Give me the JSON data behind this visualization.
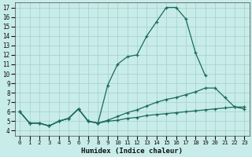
{
  "xlabel": "Humidex (Indice chaleur)",
  "bg_color": "#c8ecea",
  "grid_color": "#aad4d0",
  "line_color": "#1a6b5a",
  "xlim": [
    -0.5,
    23.5
  ],
  "ylim": [
    3.5,
    17.5
  ],
  "xticks": [
    0,
    1,
    2,
    3,
    4,
    5,
    6,
    7,
    8,
    9,
    10,
    11,
    12,
    13,
    14,
    15,
    16,
    17,
    18,
    19,
    20,
    21,
    22,
    23
  ],
  "yticks": [
    4,
    5,
    6,
    7,
    8,
    9,
    10,
    11,
    12,
    13,
    14,
    15,
    16,
    17
  ],
  "line1_x": [
    0,
    1,
    2,
    3,
    4,
    5,
    6,
    7,
    8,
    9,
    10,
    11,
    12,
    13,
    14,
    15,
    16,
    17,
    18,
    19
  ],
  "line1_y": [
    6.0,
    4.8,
    4.8,
    4.5,
    5.0,
    5.3,
    6.3,
    5.0,
    4.8,
    8.8,
    11.0,
    11.8,
    12.0,
    14.0,
    15.5,
    17.0,
    17.0,
    15.8,
    12.2,
    9.8
  ],
  "line2_x": [
    0,
    1,
    2,
    3,
    4,
    5,
    6,
    7,
    8,
    9,
    10,
    11,
    12,
    13,
    14,
    15,
    16,
    17,
    18,
    19,
    20,
    21,
    22,
    23
  ],
  "line2_y": [
    6.0,
    4.8,
    4.8,
    4.5,
    5.0,
    5.3,
    6.3,
    5.0,
    4.8,
    5.1,
    5.5,
    5.9,
    6.2,
    6.6,
    7.0,
    7.3,
    7.5,
    7.8,
    8.1,
    8.5,
    8.5,
    7.5,
    6.5,
    6.3
  ],
  "line3_x": [
    0,
    1,
    2,
    3,
    4,
    5,
    6,
    7,
    8,
    9,
    10,
    11,
    12,
    13,
    14,
    15,
    16,
    17,
    18,
    19,
    20,
    21,
    22,
    23
  ],
  "line3_y": [
    6.0,
    4.8,
    4.8,
    4.5,
    5.0,
    5.3,
    6.3,
    5.0,
    4.8,
    5.0,
    5.1,
    5.3,
    5.4,
    5.6,
    5.7,
    5.8,
    5.9,
    6.0,
    6.1,
    6.2,
    6.3,
    6.4,
    6.5,
    6.5
  ]
}
